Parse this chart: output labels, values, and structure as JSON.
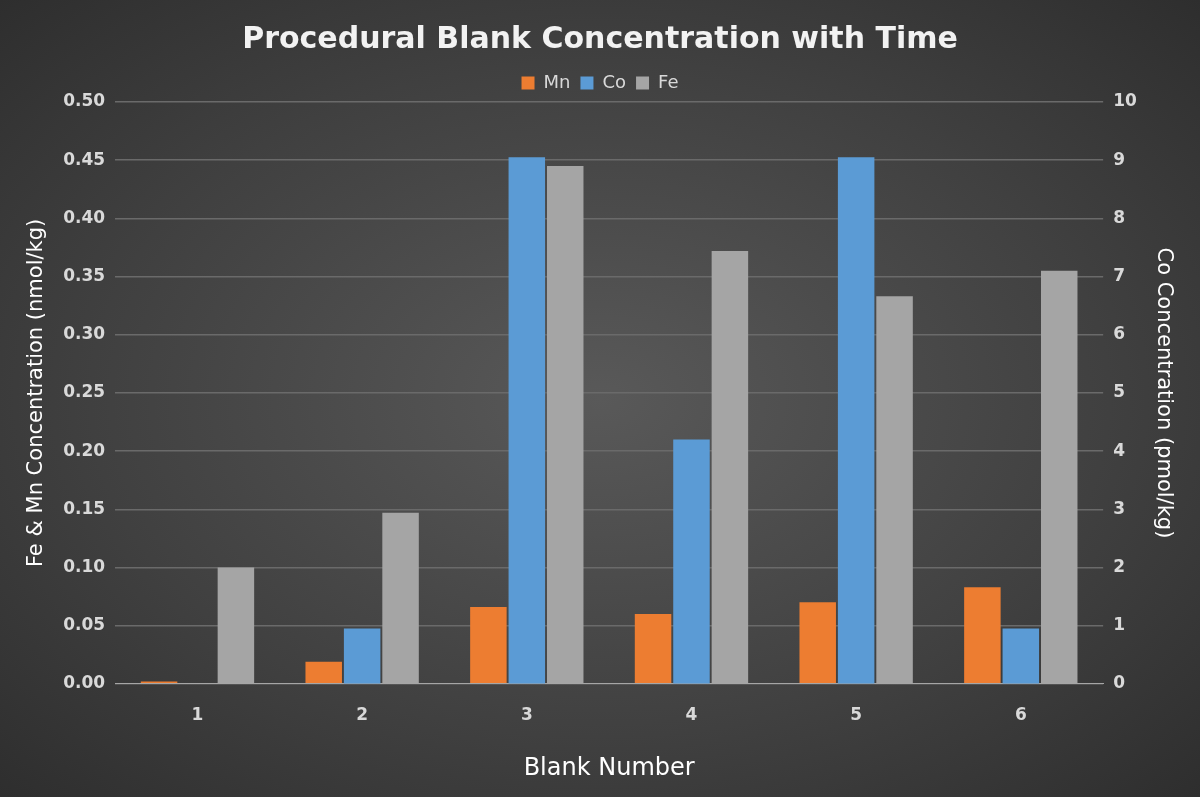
{
  "chart_data": {
    "type": "bar",
    "title": "Procedural Blank Concentration with Time",
    "xlabel": "Blank Number",
    "ylabel": "Fe & Mn Concentration (nmol/kg)",
    "y2label": "Co Concentration (pmol/kg)",
    "categories": [
      "1",
      "2",
      "3",
      "4",
      "5",
      "6"
    ],
    "series": [
      {
        "name": "Mn",
        "color": "#ed7d31",
        "values": [
          0.002,
          0.019,
          0.066,
          0.06,
          0.07,
          0.083
        ]
      },
      {
        "name": "Co",
        "color": "#5b9bd5",
        "axis": "y2",
        "values": [
          0,
          0.95,
          9.05,
          4.2,
          9.05,
          0.95
        ]
      },
      {
        "name": "Fe",
        "color": "#a5a5a5",
        "values": [
          0.1,
          0.147,
          0.445,
          0.372,
          0.333,
          0.355
        ]
      }
    ],
    "ylim": [
      0,
      0.5
    ],
    "yticks": [
      {
        "value": 0,
        "label": "0.00"
      },
      {
        "value": 0.05,
        "label": "0.05"
      },
      {
        "value": 0.1,
        "label": "0.10"
      },
      {
        "value": 0.15,
        "label": "0.15"
      },
      {
        "value": 0.2,
        "label": "0.20"
      },
      {
        "value": 0.25,
        "label": "0.25"
      },
      {
        "value": 0.3,
        "label": "0.30"
      },
      {
        "value": 0.35,
        "label": "0.35"
      },
      {
        "value": 0.4,
        "label": "0.40"
      },
      {
        "value": 0.45,
        "label": "0.45"
      },
      {
        "value": 0.5,
        "label": "0.50"
      }
    ],
    "y2lim": [
      0,
      10
    ],
    "y2ticks": [
      0,
      1,
      2,
      3,
      4,
      5,
      6,
      7,
      8,
      9,
      10
    ],
    "grid": "y",
    "legend": "top"
  }
}
